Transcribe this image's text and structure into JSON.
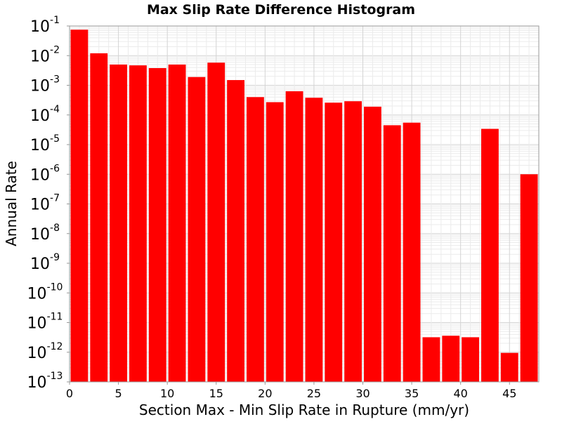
{
  "chart_data": {
    "type": "bar",
    "title": "Max Slip Rate Difference Histogram",
    "xlabel": "Section Max - Min Slip Rate in Rupture (mm/yr)",
    "ylabel": "Annual Rate",
    "x_scale": "linear",
    "y_scale": "log",
    "xlim": [
      0,
      48
    ],
    "ylim": [
      1e-13,
      0.1
    ],
    "x_ticks": [
      0,
      5,
      10,
      15,
      20,
      25,
      30,
      35,
      40,
      45
    ],
    "y_ticks": [
      {
        "base": "10",
        "exp": "-1",
        "value": 0.1
      },
      {
        "base": "10",
        "exp": "-2",
        "value": 0.01
      },
      {
        "base": "10",
        "exp": "-3",
        "value": 0.001
      },
      {
        "base": "10",
        "exp": "-4",
        "value": 0.0001
      },
      {
        "base": "10",
        "exp": "-5",
        "value": 1e-05
      },
      {
        "base": "10",
        "exp": "-6",
        "value": 1e-06
      },
      {
        "base": "10",
        "exp": "-7",
        "value": 1e-07
      },
      {
        "base": "10",
        "exp": "-8",
        "value": 1e-08
      },
      {
        "base": "10",
        "exp": "-9",
        "value": 1e-09
      },
      {
        "base": "10",
        "exp": "-10",
        "value": 1e-10
      },
      {
        "base": "10",
        "exp": "-11",
        "value": 1e-11
      },
      {
        "base": "10",
        "exp": "-12",
        "value": 1e-12
      },
      {
        "base": "10",
        "exp": "-13",
        "value": 1e-13
      }
    ],
    "grid": true,
    "legend": "none",
    "bar_color": "#ff0000",
    "bin_width": 2,
    "bins": [
      {
        "x0": 0,
        "x1": 2,
        "value": 0.075
      },
      {
        "x0": 2,
        "x1": 4,
        "value": 0.012
      },
      {
        "x0": 4,
        "x1": 6,
        "value": 0.005
      },
      {
        "x0": 6,
        "x1": 8,
        "value": 0.0047
      },
      {
        "x0": 8,
        "x1": 10,
        "value": 0.0038
      },
      {
        "x0": 10,
        "x1": 12,
        "value": 0.005
      },
      {
        "x0": 12,
        "x1": 14,
        "value": 0.0019
      },
      {
        "x0": 14,
        "x1": 16,
        "value": 0.0058
      },
      {
        "x0": 16,
        "x1": 18,
        "value": 0.0015
      },
      {
        "x0": 18,
        "x1": 20,
        "value": 0.0004
      },
      {
        "x0": 20,
        "x1": 22,
        "value": 0.00027
      },
      {
        "x0": 22,
        "x1": 24,
        "value": 0.00063
      },
      {
        "x0": 24,
        "x1": 26,
        "value": 0.00038
      },
      {
        "x0": 26,
        "x1": 28,
        "value": 0.00026
      },
      {
        "x0": 28,
        "x1": 30,
        "value": 0.00029
      },
      {
        "x0": 30,
        "x1": 32,
        "value": 0.00019
      },
      {
        "x0": 32,
        "x1": 34,
        "value": 4.5e-05
      },
      {
        "x0": 34,
        "x1": 36,
        "value": 5.5e-05
      },
      {
        "x0": 36,
        "x1": 38,
        "value": 3.2e-12
      },
      {
        "x0": 38,
        "x1": 40,
        "value": 3.6e-12
      },
      {
        "x0": 40,
        "x1": 42,
        "value": 3.2e-12
      },
      {
        "x0": 42,
        "x1": 44,
        "value": 3.4e-05
      },
      {
        "x0": 44,
        "x1": 46,
        "value": 9.5e-13
      },
      {
        "x0": 46,
        "x1": 48,
        "value": 1e-06
      }
    ]
  }
}
